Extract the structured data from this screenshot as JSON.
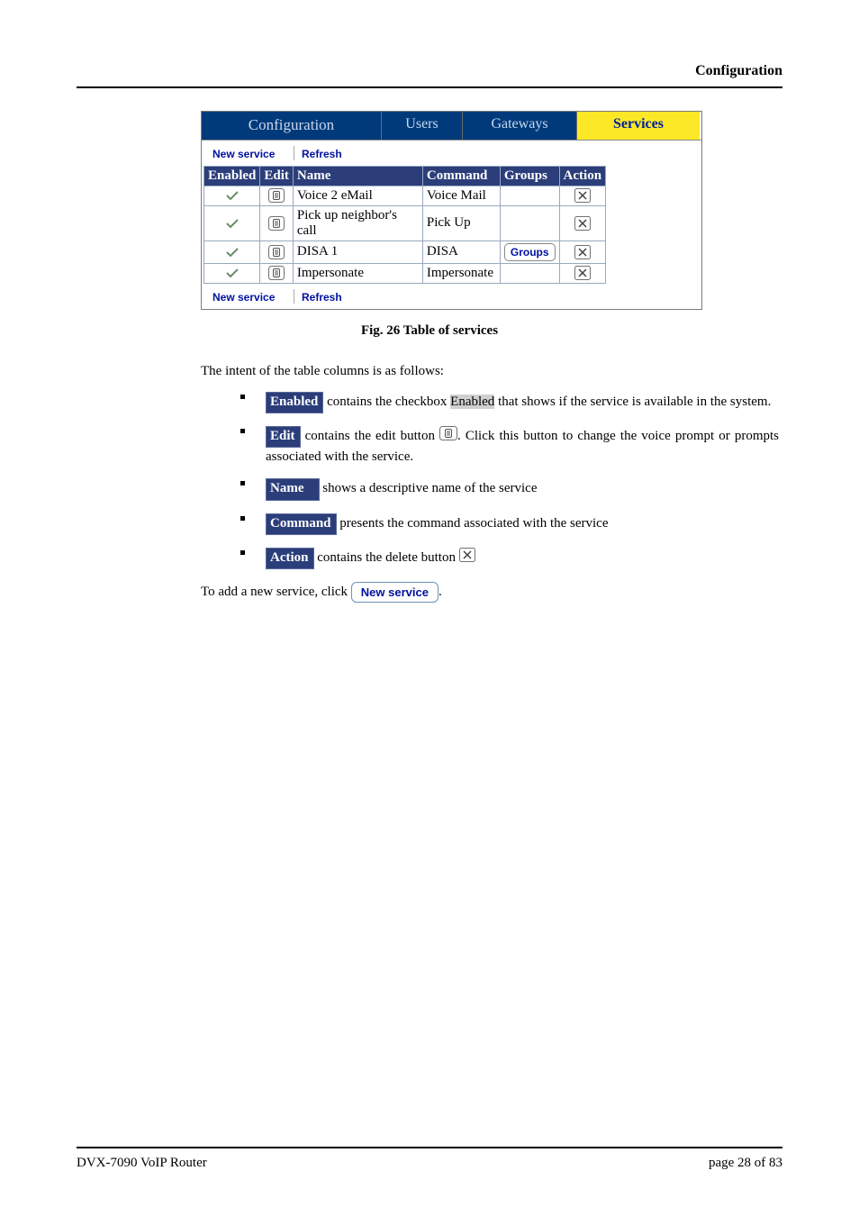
{
  "header": {
    "title": "Configuration"
  },
  "tabs": {
    "config": "Configuration",
    "users": "Users",
    "gateways": "Gateways",
    "services": "Services"
  },
  "toolbar": {
    "new_service": "New service",
    "refresh": "Refresh"
  },
  "table": {
    "columns": {
      "enabled": "Enabled",
      "edit": "Edit",
      "name": "Name",
      "command": "Command",
      "groups": "Groups",
      "action": "Action"
    },
    "groups_btn": "Groups",
    "rows": [
      {
        "enabled": "✓",
        "name": "Voice 2 eMail",
        "command": "Voice Mail",
        "has_groups": false
      },
      {
        "enabled": "✓",
        "name": "Pick up neighbor's call",
        "command": "Pick Up",
        "has_groups": false
      },
      {
        "enabled": "✓",
        "name": "DISA 1",
        "command": "DISA",
        "has_groups": true
      },
      {
        "enabled": "✓",
        "name": "Impersonate",
        "command": "Impersonate",
        "has_groups": false
      }
    ]
  },
  "figcaption": "Fig. 26 Table of services",
  "intro": "The intent of the table columns is as follows:",
  "descriptions": {
    "enabled_label": "Enabled",
    "enabled_text_a": " contains the checkbox ",
    "enabled_hl": "Enabled",
    "enabled_text_b": " that shows if the service is available in the system.",
    "edit_label": "Edit",
    "edit_text_a": " contains the edit button ",
    "edit_text_b": ". Click this button to change the voice prompt or prompts associated with the service.",
    "name_label": "Name",
    "name_text": " shows a descriptive name of the service",
    "command_label": "Command",
    "command_text": " presents the command associated with the service",
    "action_label": "Action",
    "action_text": " contains the delete button "
  },
  "addservice": {
    "prefix": "To add a new service, click ",
    "btn": "New service",
    "suffix": "."
  },
  "footer": {
    "left": "DVX-7090 VoIP Router",
    "right": "page 28 of 83"
  },
  "colors": {
    "tab_bg": "#003a7a",
    "tab_active_bg": "#fce827",
    "tab_active_fg": "#0020a0",
    "th_bg": "#2b3e7a",
    "link": "#0010a0"
  }
}
